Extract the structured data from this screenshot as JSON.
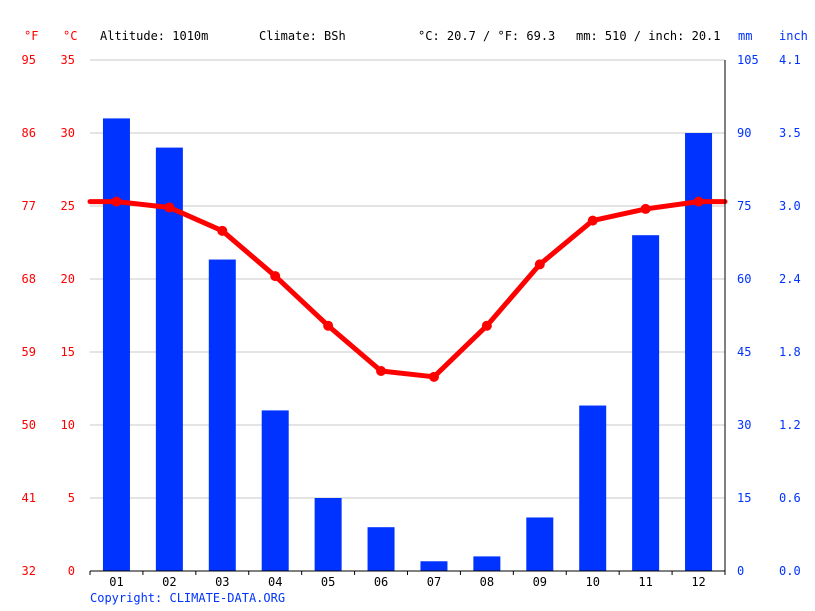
{
  "header": {
    "unit_f": "°F",
    "unit_c": "°C",
    "altitude": "Altitude: 1010m",
    "climate": "Climate: BSh",
    "temp_avg": "°C: 20.7 / °F: 69.3",
    "precip_avg": "mm: 510 / inch: 20.1",
    "unit_mm": "mm",
    "unit_inch": "inch"
  },
  "axes": {
    "fahrenheit_ticks": [
      "95",
      "86",
      "77",
      "68",
      "59",
      "50",
      "41",
      "32"
    ],
    "celsius_ticks": [
      "35",
      "30",
      "25",
      "20",
      "15",
      "10",
      "5",
      "0"
    ],
    "mm_ticks": [
      "105",
      "90",
      "75",
      "60",
      "45",
      "30",
      "15",
      "0"
    ],
    "inch_ticks": [
      "4.1",
      "3.5",
      "3.0",
      "2.4",
      "1.8",
      "1.2",
      "0.6",
      "0.0"
    ]
  },
  "footer": {
    "copyright": "Copyright: CLIMATE-DATA.ORG"
  },
  "colors": {
    "temperature": "#ff0000",
    "precipitation": "#0033ff",
    "grid": "#c8c8c8",
    "axis": "#000000"
  },
  "chart_data": {
    "type": "bar",
    "categories": [
      "01",
      "02",
      "03",
      "04",
      "05",
      "06",
      "07",
      "08",
      "09",
      "10",
      "11",
      "12"
    ],
    "series": [
      {
        "type": "bar",
        "axis": "mm",
        "values": [
          93,
          87,
          64,
          33,
          15,
          9,
          2,
          3,
          11,
          34,
          69,
          90
        ]
      },
      {
        "type": "line",
        "axis": "celsius",
        "values": [
          25.3,
          24.9,
          23.3,
          20.2,
          16.8,
          13.7,
          13.3,
          16.8,
          21.0,
          24.0,
          24.8,
          25.3
        ]
      }
    ],
    "ylim_celsius": [
      0,
      35
    ],
    "ylim_mm": [
      0,
      105
    ],
    "grid": true
  }
}
